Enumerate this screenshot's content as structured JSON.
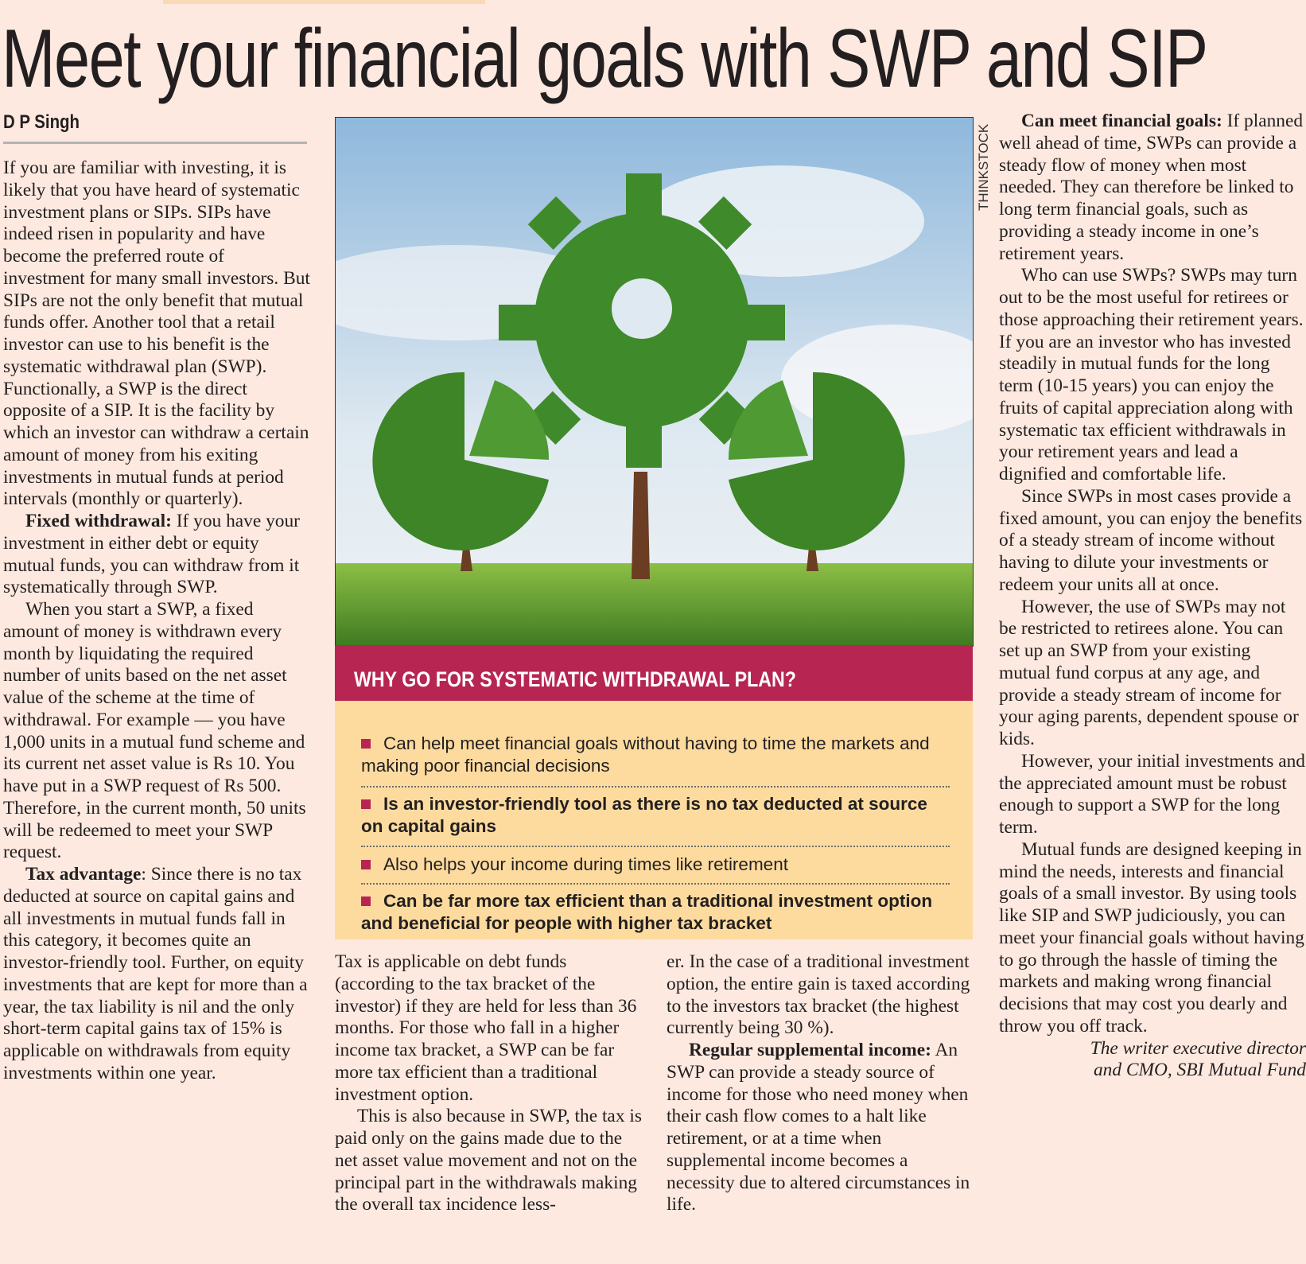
{
  "headline": "Meet your financial goals with SWP and SIP",
  "byline": "D P Singh",
  "photo_credit": "THINKSTOCK",
  "column1": [
    {
      "lead": "",
      "text": "If you are familiar with investing, it is likely that you have heard of systematic investment plans or SIPs. SIPs have indeed risen in popularity and have become the preferred route of investment for many small investors. But SIPs are not the only benefit that mutual funds offer. Another tool that a retail investor can use to his benefit is the systematic withdrawal plan (SWP). Functionally, a SWP is the direct opposite of a SIP. It is the facility by which an investor can withdraw a certain amount of money from his exiting investments in mutual funds at period intervals (monthly or quarterly)."
    },
    {
      "lead": "Fixed withdrawal:",
      "text": " If you have your investment in either debt or equity mutual funds, you can withdraw from it systematically through SWP."
    },
    {
      "lead": "",
      "text": "When you start a SWP, a fixed amount of money is withdrawn every month by liquidating the required number of units based on the net asset value of the scheme at the time of withdrawal. For example — you have 1,000 units in a mutual fund scheme and its current net asset value is Rs 10. You have put in a SWP request of Rs 500. Therefore, in the current month, 50 units will be redeemed to meet your SWP request."
    },
    {
      "lead": "Tax advantage",
      "text": ": Since there is no tax deducted at source on capital gains and all investments in mutual funds fall in this category, it becomes quite an investor-friendly tool. Further, on equity investments that are kept for more than a year, the tax liability is nil and the only short-term capital gains tax of 15% is applicable on withdrawals from equity investments within one year."
    }
  ],
  "column2": [
    {
      "lead": "",
      "text": "Tax is applicable on debt funds (according to the tax bracket of the investor) if they are held for less than 36 months. For those who fall in a higher income tax bracket, a SWP can be far more tax efficient than a traditional investment option."
    },
    {
      "lead": "",
      "text": "This is also because in SWP, the tax is paid only on the gains made due to the net asset value movement and not on the principal part in the withdrawals making the overall tax incidence less-"
    }
  ],
  "column3": [
    {
      "lead": "",
      "text": "er. In the case of a traditional investment option, the entire gain is taxed according to the investors tax bracket (the highest currently being 30 %)."
    },
    {
      "lead": "Regular supplemental income:",
      "text": " An SWP can provide a steady source of income for those who need money when their cash flow comes to a halt like retirement, or at a time when supplemental income becomes a necessity due to altered circumstances in life."
    }
  ],
  "column4": [
    {
      "lead": "Can meet financial goals:",
      "text": " If planned well ahead of time, SWPs can provide a steady flow of money when most needed. They can therefore be linked to long term financial goals, such as providing a steady income in one’s retirement years."
    },
    {
      "lead": "",
      "text": "Who can use SWPs? SWPs may turn out to be the most useful for retirees or those approaching their retirement years. If you are an investor who has invested steadily in mutual funds for the long term (10-15 years) you can enjoy the fruits of capital appreciation along with systematic tax efficient withdrawals in your retirement years and lead a dignified and comfortable life."
    },
    {
      "lead": "",
      "text": "Since SWPs in most cases provide a fixed amount, you can enjoy the benefits of a steady stream of income without having to dilute your investments or redeem your units all at once."
    },
    {
      "lead": "",
      "text": "However, the use of SWPs may not be restricted to retirees alone. You can set up an SWP from your existing mutual fund corpus at any age, and provide a steady stream of income for your aging parents, dependent spouse or kids."
    },
    {
      "lead": "",
      "text": "However, your initial investments and the appreciated amount must be robust enough to support a SWP for the long term."
    },
    {
      "lead": "",
      "text": "Mutual funds are designed keeping in mind the needs, interests and financial goals of a small investor. By using tools like SIP and SWP judiciously, you can meet your financial goals without having to go through the hassle of timing the markets and making wrong financial decisions that may cost you dearly and throw you off track."
    }
  ],
  "signature": [
    "The writer executive director",
    "and CMO, SBI Mutual Fund"
  ],
  "box": {
    "title": "WHY GO FOR SYSTEMATIC WITHDRAWAL PLAN?",
    "items": [
      {
        "text": "Can help meet financial goals without having to time the markets and making poor financial decisions",
        "bold": false
      },
      {
        "text": "Is an investor-friendly tool as there is no tax deducted at source on capital gains",
        "bold": true
      },
      {
        "text": "Also helps your income during times like retirement",
        "bold": false
      },
      {
        "text": "Can be far more tax efficient than a traditional investment option and beneficial for people with higher tax bracket",
        "bold": true
      }
    ]
  },
  "colors": {
    "page": "#fde9df",
    "box_header": "#b72552",
    "box_body": "#fddb9f",
    "bullet": "#b72552"
  }
}
